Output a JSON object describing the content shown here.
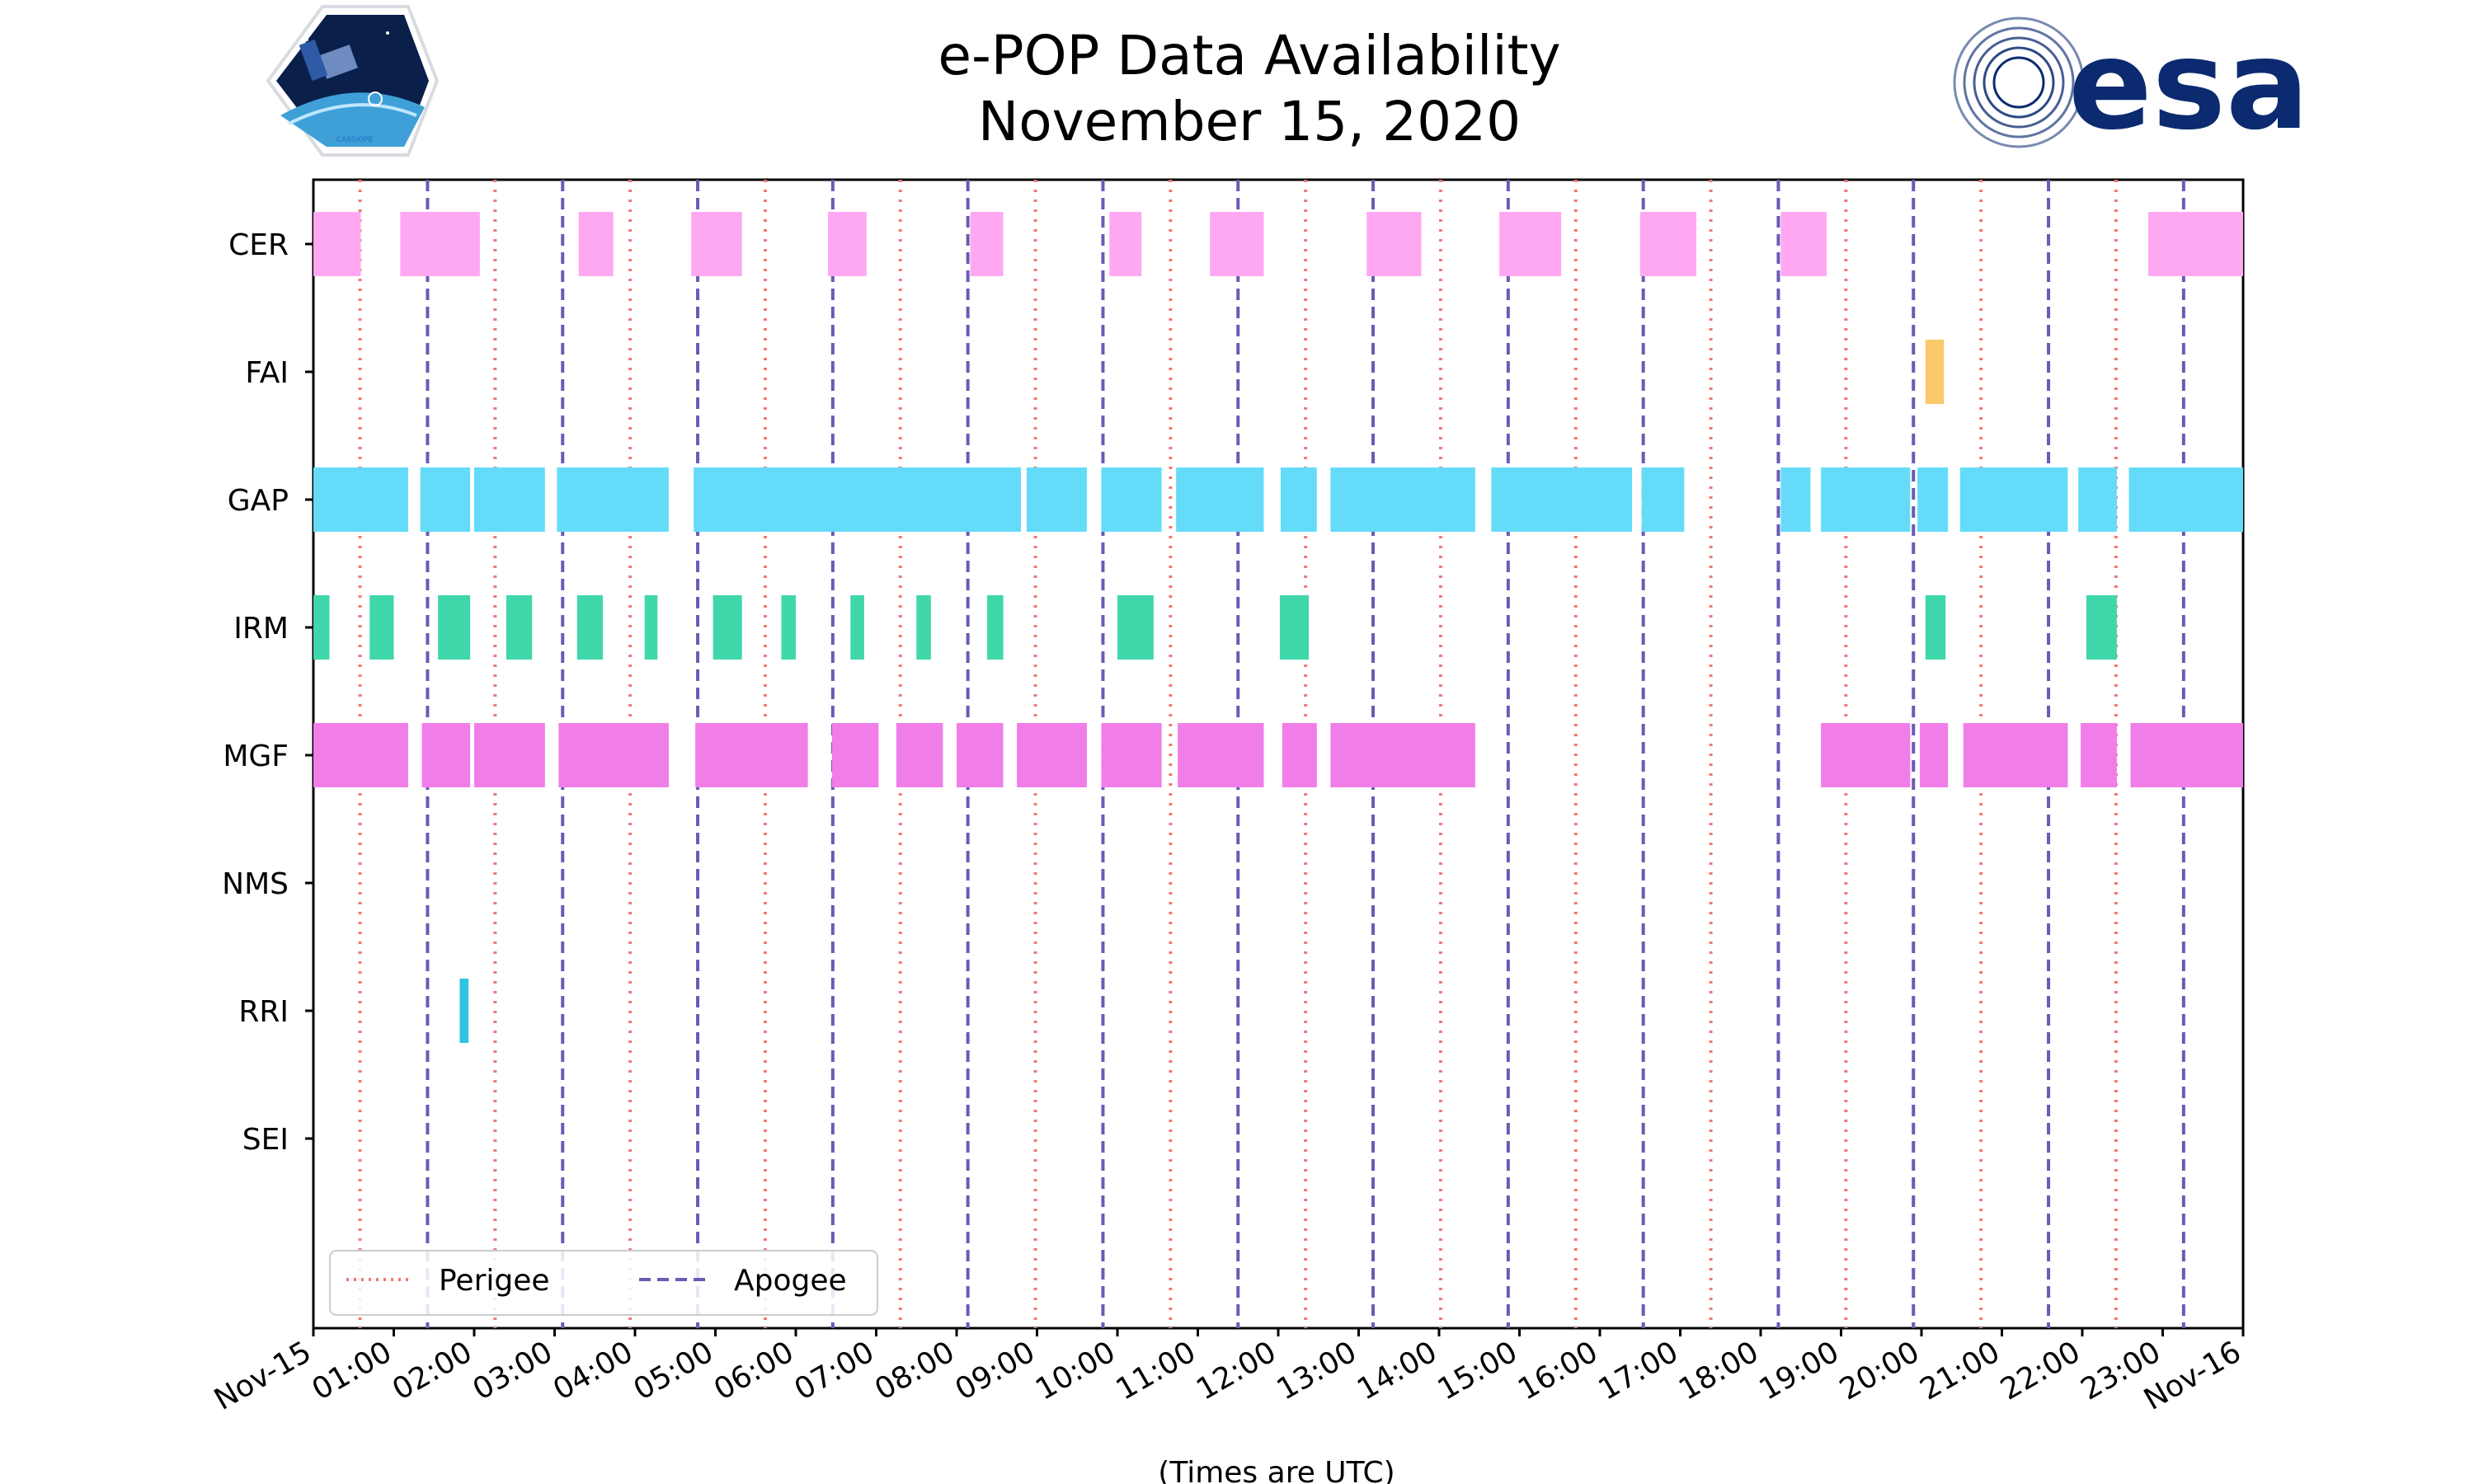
{
  "chart_data": {
    "type": "timeline",
    "title_lines": [
      "e-POP Data Availability",
      "November 15, 2020"
    ],
    "xlabel": "(Times are UTC)",
    "x_unit": "hours (UTC)",
    "xlim": [
      0,
      24
    ],
    "x_ticks": [
      {
        "hour": 0,
        "label": "Nov-15"
      },
      {
        "hour": 1,
        "label": "01:00"
      },
      {
        "hour": 2,
        "label": "02:00"
      },
      {
        "hour": 3,
        "label": "03:00"
      },
      {
        "hour": 4,
        "label": "04:00"
      },
      {
        "hour": 5,
        "label": "05:00"
      },
      {
        "hour": 6,
        "label": "06:00"
      },
      {
        "hour": 7,
        "label": "07:00"
      },
      {
        "hour": 8,
        "label": "08:00"
      },
      {
        "hour": 9,
        "label": "09:00"
      },
      {
        "hour": 10,
        "label": "10:00"
      },
      {
        "hour": 11,
        "label": "11:00"
      },
      {
        "hour": 12,
        "label": "12:00"
      },
      {
        "hour": 13,
        "label": "13:00"
      },
      {
        "hour": 14,
        "label": "14:00"
      },
      {
        "hour": 15,
        "label": "15:00"
      },
      {
        "hour": 16,
        "label": "16:00"
      },
      {
        "hour": 17,
        "label": "17:00"
      },
      {
        "hour": 18,
        "label": "18:00"
      },
      {
        "hour": 19,
        "label": "19:00"
      },
      {
        "hour": 20,
        "label": "20:00"
      },
      {
        "hour": 21,
        "label": "21:00"
      },
      {
        "hour": 22,
        "label": "22:00"
      },
      {
        "hour": 23,
        "label": "23:00"
      },
      {
        "hour": 24,
        "label": "Nov-16"
      }
    ],
    "instruments": [
      {
        "name": "CER",
        "color": "#ffa8f2",
        "intervals": [
          [
            0,
            0.59
          ],
          [
            1.08,
            2.07
          ],
          [
            3.3,
            3.73
          ],
          [
            4.7,
            5.33
          ],
          [
            6.4,
            6.88
          ],
          [
            8.17,
            8.58
          ],
          [
            9.9,
            10.3
          ],
          [
            11.15,
            11.82
          ],
          [
            13.1,
            13.78
          ],
          [
            14.75,
            15.52
          ],
          [
            16.5,
            17.2
          ],
          [
            18.25,
            18.82
          ],
          [
            22.82,
            24
          ]
        ]
      },
      {
        "name": "FAI",
        "color": "#fcc96a",
        "intervals": [
          [
            20.05,
            20.28
          ]
        ]
      },
      {
        "name": "GAP",
        "color": "#64dcf9",
        "intervals": [
          [
            0,
            1.18
          ],
          [
            1.33,
            1.95
          ],
          [
            2.0,
            2.88
          ],
          [
            3.03,
            4.42
          ],
          [
            4.73,
            8.8
          ],
          [
            8.87,
            9.62
          ],
          [
            9.8,
            10.55
          ],
          [
            10.73,
            11.82
          ],
          [
            12.03,
            12.48
          ],
          [
            12.65,
            14.45
          ],
          [
            14.65,
            16.4
          ],
          [
            16.52,
            17.05
          ],
          [
            18.25,
            18.62
          ],
          [
            18.75,
            19.86
          ],
          [
            19.95,
            20.33
          ],
          [
            20.48,
            21.82
          ],
          [
            21.95,
            22.43
          ],
          [
            22.58,
            24
          ]
        ]
      },
      {
        "name": "IRM",
        "color": "#40d7ab",
        "intervals": [
          [
            0,
            0.2
          ],
          [
            0.7,
            1.0
          ],
          [
            1.55,
            1.95
          ],
          [
            2.4,
            2.72
          ],
          [
            3.28,
            3.6
          ],
          [
            4.12,
            4.28
          ],
          [
            4.97,
            5.33
          ],
          [
            5.82,
            6.0
          ],
          [
            6.68,
            6.85
          ],
          [
            7.5,
            7.68
          ],
          [
            8.38,
            8.58
          ],
          [
            10.0,
            10.45
          ],
          [
            12.02,
            12.38
          ],
          [
            20.05,
            20.3
          ],
          [
            22.05,
            22.43
          ]
        ]
      },
      {
        "name": "MGF",
        "color": "#f17ee8",
        "intervals": [
          [
            0,
            1.18
          ],
          [
            1.35,
            1.95
          ],
          [
            2.0,
            2.88
          ],
          [
            3.05,
            4.42
          ],
          [
            4.75,
            6.15
          ],
          [
            6.45,
            7.03
          ],
          [
            7.25,
            7.83
          ],
          [
            8.0,
            8.58
          ],
          [
            8.75,
            9.62
          ],
          [
            9.8,
            10.55
          ],
          [
            10.75,
            11.82
          ],
          [
            12.05,
            12.48
          ],
          [
            12.65,
            14.45
          ],
          [
            18.75,
            19.86
          ],
          [
            19.98,
            20.33
          ],
          [
            20.52,
            21.82
          ],
          [
            21.98,
            22.43
          ],
          [
            22.6,
            24
          ]
        ]
      },
      {
        "name": "NMS",
        "color": "#9e9e9e",
        "intervals": []
      },
      {
        "name": "RRI",
        "color": "#2ec5de",
        "intervals": [
          [
            1.82,
            1.93
          ]
        ]
      },
      {
        "name": "SEI",
        "color": "#9e9e9e",
        "intervals": []
      }
    ],
    "perigee_hours": [
      0.58,
      2.26,
      3.94,
      5.62,
      7.3,
      8.98,
      10.66,
      12.34,
      14.02,
      15.7,
      17.38,
      19.06,
      20.74,
      22.42
    ],
    "apogee_hours": [
      1.42,
      3.1,
      4.78,
      6.46,
      8.14,
      9.82,
      11.5,
      13.18,
      14.86,
      16.54,
      18.22,
      19.9,
      21.58,
      23.26
    ],
    "perigee_color": "#f07878",
    "apogee_color": "#6a5bb5",
    "legend": {
      "position": "lower-left",
      "entries": [
        {
          "label": "Perigee",
          "style": "dotted"
        },
        {
          "label": "Apogee",
          "style": "dashed"
        }
      ]
    }
  },
  "logos": {
    "left_badge_text": "CASSIOPE",
    "right_logo_text": "esa"
  }
}
